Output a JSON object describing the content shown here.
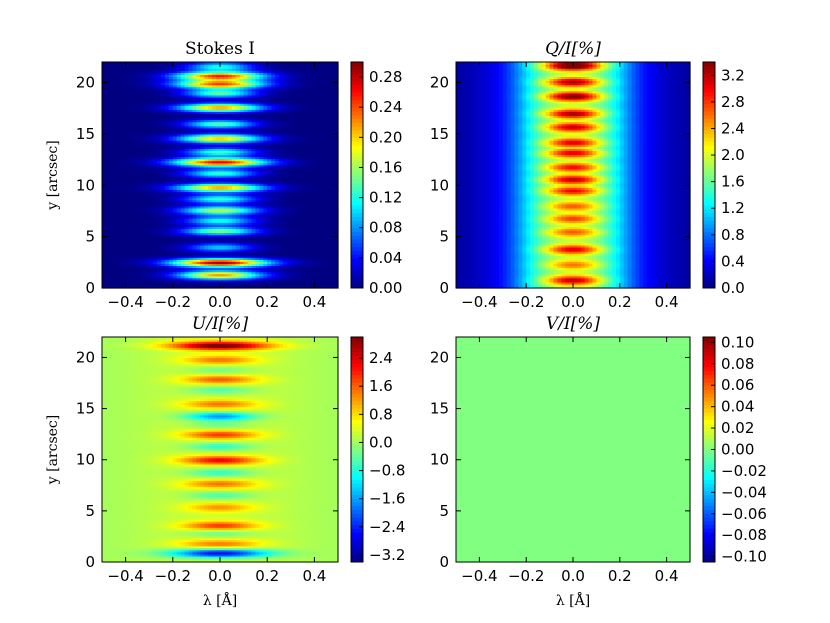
{
  "chart_data": [
    {
      "type": "heatmap",
      "title": "Stokes I",
      "xlabel": "",
      "ylabel": "y [arcsec]",
      "xlim": [
        -0.5,
        0.5
      ],
      "ylim": [
        0,
        22
      ],
      "xticks": [
        "−0.4",
        "−0.2",
        "0.0",
        "0.2",
        "0.4"
      ],
      "xtick_values": [
        -0.4,
        -0.2,
        0.0,
        0.2,
        0.4
      ],
      "yticks": [
        "0",
        "5",
        "10",
        "15",
        "20"
      ],
      "ytick_values": [
        0,
        5,
        10,
        15,
        20
      ],
      "colorbar": {
        "range": [
          0.0,
          0.3
        ],
        "tick_values": [
          0.0,
          0.04,
          0.08,
          0.12,
          0.16,
          0.2,
          0.24,
          0.28
        ],
        "tick_labels": [
          "0.00",
          "0.04",
          "0.08",
          "0.12",
          "0.16",
          "0.20",
          "0.24",
          "0.28"
        ]
      },
      "colormap": "jet",
      "profile": {
        "shape": "gaussian-in-lambda",
        "base_width": 0.13,
        "bands": [
          {
            "y": 2.5,
            "peak": 0.29,
            "halfwidth": 0.23
          },
          {
            "y": 1.3,
            "peak": 0.22,
            "halfwidth": 0.2
          },
          {
            "y": 4.0,
            "peak": 0.1,
            "halfwidth": 0.16
          },
          {
            "y": 5.6,
            "peak": 0.15,
            "halfwidth": 0.18
          },
          {
            "y": 6.6,
            "peak": 0.12,
            "halfwidth": 0.17
          },
          {
            "y": 7.6,
            "peak": 0.17,
            "halfwidth": 0.19
          },
          {
            "y": 8.7,
            "peak": 0.13,
            "halfwidth": 0.17
          },
          {
            "y": 9.8,
            "peak": 0.22,
            "halfwidth": 0.21
          },
          {
            "y": 11.2,
            "peak": 0.13,
            "halfwidth": 0.17
          },
          {
            "y": 12.3,
            "peak": 0.27,
            "halfwidth": 0.22
          },
          {
            "y": 13.3,
            "peak": 0.13,
            "halfwidth": 0.17
          },
          {
            "y": 14.6,
            "peak": 0.21,
            "halfwidth": 0.2
          },
          {
            "y": 16.0,
            "peak": 0.14,
            "halfwidth": 0.17
          },
          {
            "y": 17.6,
            "peak": 0.22,
            "halfwidth": 0.2
          },
          {
            "y": 19.0,
            "peak": 0.14,
            "halfwidth": 0.17
          },
          {
            "y": 19.9,
            "peak": 0.24,
            "halfwidth": 0.21
          },
          {
            "y": 20.7,
            "peak": 0.25,
            "halfwidth": 0.21
          },
          {
            "y": 21.6,
            "peak": 0.12,
            "halfwidth": 0.16
          }
        ]
      }
    },
    {
      "type": "heatmap",
      "title": "Q/I[%]",
      "xlabel": "",
      "ylabel": "",
      "xlim": [
        -0.5,
        0.5
      ],
      "ylim": [
        0,
        22
      ],
      "xticks": [
        "−0.4",
        "−0.2",
        "0.0",
        "0.2",
        "0.4"
      ],
      "xtick_values": [
        -0.4,
        -0.2,
        0.0,
        0.2,
        0.4
      ],
      "yticks": [
        "0",
        "5",
        "10",
        "15",
        "20"
      ],
      "ytick_values": [
        0,
        5,
        10,
        15,
        20
      ],
      "colorbar": {
        "range": [
          0.0,
          3.4
        ],
        "tick_values": [
          0.0,
          0.4,
          0.8,
          1.2,
          1.6,
          2.0,
          2.4,
          2.8,
          3.2
        ],
        "tick_labels": [
          "0.0",
          "0.4",
          "0.8",
          "1.2",
          "1.6",
          "2.0",
          "2.4",
          "2.8",
          "3.2"
        ]
      },
      "colormap": "jet",
      "profile": {
        "shape": "broad-core",
        "base_level": 1.5,
        "core_halfwidth": 0.2,
        "bands": [
          {
            "y": 0.8,
            "peak": 2.8
          },
          {
            "y": 2.3,
            "peak": 2.2
          },
          {
            "y": 3.8,
            "peak": 2.7
          },
          {
            "y": 5.5,
            "peak": 2.3
          },
          {
            "y": 6.8,
            "peak": 2.4
          },
          {
            "y": 8.0,
            "peak": 2.3
          },
          {
            "y": 9.5,
            "peak": 2.6
          },
          {
            "y": 10.6,
            "peak": 2.8
          },
          {
            "y": 11.8,
            "peak": 2.6
          },
          {
            "y": 13.2,
            "peak": 2.7
          },
          {
            "y": 14.2,
            "peak": 2.7
          },
          {
            "y": 15.7,
            "peak": 2.8
          },
          {
            "y": 17.0,
            "peak": 2.9
          },
          {
            "y": 18.7,
            "peak": 3.1
          },
          {
            "y": 20.1,
            "peak": 2.9
          },
          {
            "y": 21.7,
            "peak": 3.4
          }
        ]
      }
    },
    {
      "type": "heatmap",
      "title": "U/I[%]",
      "xlabel": "λ [Å]",
      "ylabel": "y [arcsec]",
      "xlim": [
        -0.5,
        0.5
      ],
      "ylim": [
        0,
        22
      ],
      "xticks": [
        "−0.4",
        "−0.2",
        "0.0",
        "0.2",
        "0.4"
      ],
      "xtick_values": [
        -0.4,
        -0.2,
        0.0,
        0.2,
        0.4
      ],
      "yticks": [
        "0",
        "5",
        "10",
        "15",
        "20"
      ],
      "ytick_values": [
        0,
        5,
        10,
        15,
        20
      ],
      "colorbar": {
        "range": [
          -3.4,
          3.0
        ],
        "tick_values": [
          -3.2,
          -2.4,
          -1.6,
          -0.8,
          0.0,
          0.8,
          1.6,
          2.4
        ],
        "tick_labels": [
          "−3.2",
          "−2.4",
          "−1.6",
          "−0.8",
          "0.0",
          "0.8",
          "1.6",
          "2.4"
        ]
      },
      "colormap": "jet",
      "profile": {
        "shape": "gaussian-in-lambda",
        "base_width": 0.15,
        "background": 0.3,
        "bands": [
          {
            "y": 0.9,
            "peak": -3.0,
            "halfwidth": 0.24
          },
          {
            "y": 1.8,
            "peak": 1.2,
            "halfwidth": 0.2
          },
          {
            "y": 2.8,
            "peak": -0.6,
            "halfwidth": 0.16
          },
          {
            "y": 3.6,
            "peak": 1.6,
            "halfwidth": 0.18
          },
          {
            "y": 5.4,
            "peak": 1.0,
            "halfwidth": 0.16
          },
          {
            "y": 6.6,
            "peak": -0.8,
            "halfwidth": 0.16
          },
          {
            "y": 7.7,
            "peak": 1.2,
            "halfwidth": 0.18
          },
          {
            "y": 8.8,
            "peak": -1.0,
            "halfwidth": 0.16
          },
          {
            "y": 10.0,
            "peak": 2.0,
            "halfwidth": 0.19
          },
          {
            "y": 11.3,
            "peak": -1.0,
            "halfwidth": 0.16
          },
          {
            "y": 12.5,
            "peak": 1.6,
            "halfwidth": 0.18
          },
          {
            "y": 13.4,
            "peak": -0.6,
            "halfwidth": 0.15
          },
          {
            "y": 14.3,
            "peak": -2.0,
            "halfwidth": 0.17
          },
          {
            "y": 15.5,
            "peak": 1.2,
            "halfwidth": 0.18
          },
          {
            "y": 16.9,
            "peak": -0.8,
            "halfwidth": 0.16
          },
          {
            "y": 17.9,
            "peak": 1.4,
            "halfwidth": 0.18
          },
          {
            "y": 18.8,
            "peak": -0.6,
            "halfwidth": 0.15
          },
          {
            "y": 19.8,
            "peak": 1.2,
            "halfwidth": 0.18
          },
          {
            "y": 21.2,
            "peak": 2.9,
            "halfwidth": 0.24
          }
        ]
      }
    },
    {
      "type": "heatmap",
      "title": "V/I[%]",
      "xlabel": "λ [Å]",
      "ylabel": "",
      "xlim": [
        -0.5,
        0.5
      ],
      "ylim": [
        0,
        22
      ],
      "xticks": [
        "−0.4",
        "−0.2",
        "0.0",
        "0.2",
        "0.4"
      ],
      "xtick_values": [
        -0.4,
        -0.2,
        0.0,
        0.2,
        0.4
      ],
      "yticks": [
        "0",
        "5",
        "10",
        "15",
        "20"
      ],
      "ytick_values": [
        0,
        5,
        10,
        15,
        20
      ],
      "colorbar": {
        "range": [
          -0.105,
          0.105
        ],
        "tick_values": [
          -0.1,
          -0.08,
          -0.06,
          -0.04,
          -0.02,
          0.0,
          0.02,
          0.04,
          0.06,
          0.08,
          0.1
        ],
        "tick_labels": [
          "−0.10",
          "−0.08",
          "−0.06",
          "−0.04",
          "−0.02",
          "0.00",
          "0.02",
          "0.04",
          "0.06",
          "0.08",
          "0.10"
        ]
      },
      "colormap": "jet",
      "profile": {
        "shape": "uniform",
        "value": 0.0
      }
    }
  ]
}
